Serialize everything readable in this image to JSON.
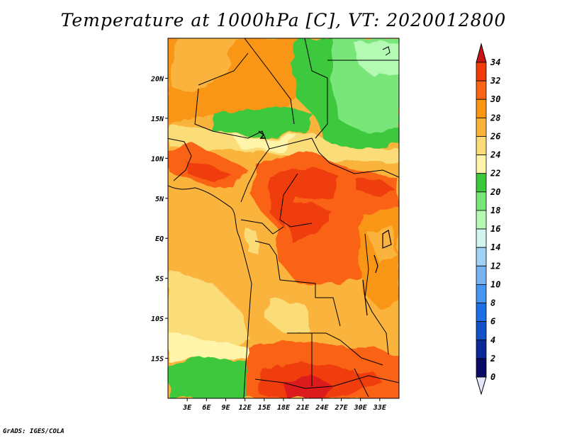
{
  "title": "Temperature at 1000hPa [C], VT: 2020012800",
  "credit": "GrADS: IGES/COLA",
  "map": {
    "lon_range": [
      0,
      36
    ],
    "lat_range": [
      -20,
      25
    ],
    "x_ticks": [
      "3E",
      "6E",
      "9E",
      "12E",
      "15E",
      "18E",
      "21E",
      "24E",
      "27E",
      "30E",
      "33E"
    ],
    "y_ticks": [
      "20N",
      "15N",
      "10N",
      "5N",
      "EQ",
      "5S",
      "10S",
      "15S"
    ]
  },
  "colorbar": {
    "levels": [
      "34",
      "32",
      "30",
      "28",
      "26",
      "24",
      "22",
      "20",
      "18",
      "16",
      "14",
      "12",
      "10",
      "8",
      "6",
      "4",
      "2",
      "0"
    ],
    "colors": [
      "#dc1e1e",
      "#f03c0a",
      "#fa6414",
      "#fa9614",
      "#fab43c",
      "#fadc78",
      "#fff5aa",
      "#3cc83c",
      "#78e678",
      "#b4fab4",
      "#d2f5f0",
      "#a0d2f5",
      "#78b4f0",
      "#4696f0",
      "#1e6ee6",
      "#1450c8",
      "#0a2896",
      "#0a0a64"
    ],
    "top_arrow_color": "#c81414",
    "bottom_arrow_color": "#e6e6fa"
  }
}
